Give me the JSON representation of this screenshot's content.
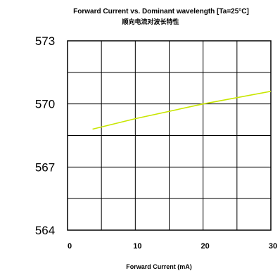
{
  "chart_data": {
    "type": "line",
    "title": "Forward Current vs. Dominant wavelength [Ta=25°C]",
    "subtitle": "顺向电流对波长特性",
    "xlabel": "Forward Current (mA)",
    "ylabel": "",
    "xlim": [
      0,
      30
    ],
    "ylim": [
      564,
      573
    ],
    "x_ticks": [
      0,
      10,
      20,
      30
    ],
    "y_ticks": [
      573,
      570,
      567,
      564
    ],
    "x_tick_labels": [
      "0",
      "10",
      "20",
      "30"
    ],
    "y_tick_labels": [
      "573",
      "570",
      "567",
      "564"
    ],
    "grid": true,
    "x_grid_step": 5,
    "y_grid_step": 1.5,
    "line_color": "#c8e600",
    "series": [
      {
        "x": [
          3.7,
          10,
          20,
          30
        ],
        "values": [
          568.8,
          569.3,
          570.0,
          570.6
        ]
      }
    ]
  }
}
